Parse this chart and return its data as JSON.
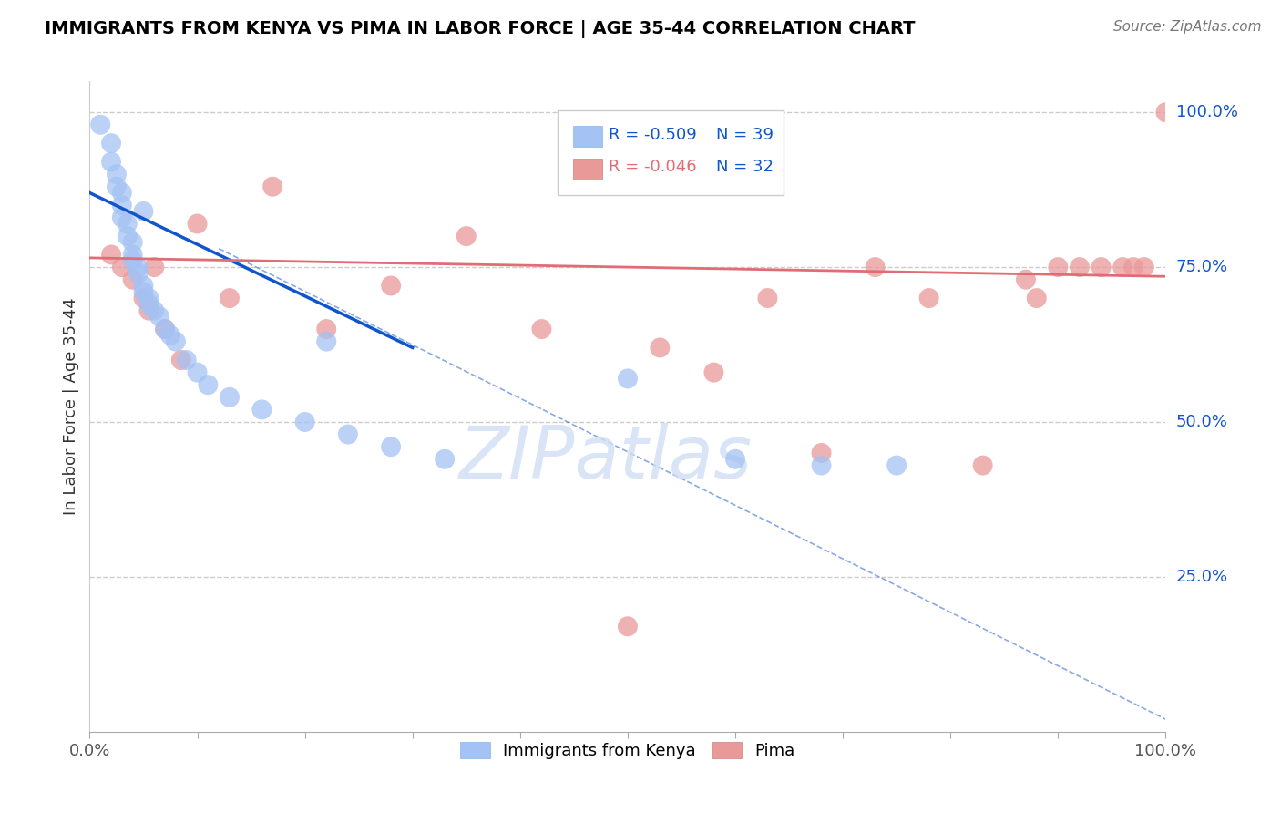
{
  "title": "IMMIGRANTS FROM KENYA VS PIMA IN LABOR FORCE | AGE 35-44 CORRELATION CHART",
  "source": "Source: ZipAtlas.com",
  "ylabel": "In Labor Force | Age 35-44",
  "watermark": "ZIPatlas",
  "legend_r_blue": "R = -0.509",
  "legend_n_blue": "N = 39",
  "legend_r_pink": "R = -0.046",
  "legend_n_pink": "N = 32",
  "legend_label_blue": "Immigrants from Kenya",
  "legend_label_pink": "Pima",
  "right_ytick_labels": [
    "100.0%",
    "75.0%",
    "50.0%",
    "25.0%"
  ],
  "right_ytick_values": [
    1.0,
    0.75,
    0.5,
    0.25
  ],
  "blue_color": "#a4c2f4",
  "pink_color": "#ea9999",
  "blue_line_color": "#1155cc",
  "pink_line_color": "#e06c75",
  "blue_scatter_x": [
    0.01,
    0.02,
    0.02,
    0.025,
    0.025,
    0.03,
    0.03,
    0.03,
    0.035,
    0.035,
    0.04,
    0.04,
    0.04,
    0.045,
    0.045,
    0.05,
    0.05,
    0.05,
    0.055,
    0.055,
    0.06,
    0.065,
    0.07,
    0.075,
    0.08,
    0.09,
    0.1,
    0.11,
    0.13,
    0.16,
    0.2,
    0.22,
    0.24,
    0.28,
    0.33,
    0.5,
    0.6,
    0.68,
    0.75
  ],
  "blue_scatter_y": [
    0.98,
    0.95,
    0.92,
    0.9,
    0.88,
    0.87,
    0.85,
    0.83,
    0.82,
    0.8,
    0.79,
    0.77,
    0.76,
    0.75,
    0.74,
    0.84,
    0.72,
    0.71,
    0.7,
    0.69,
    0.68,
    0.67,
    0.65,
    0.64,
    0.63,
    0.6,
    0.58,
    0.56,
    0.54,
    0.52,
    0.5,
    0.63,
    0.48,
    0.46,
    0.44,
    0.57,
    0.44,
    0.43,
    0.43
  ],
  "pink_scatter_x": [
    0.02,
    0.03,
    0.04,
    0.05,
    0.055,
    0.06,
    0.07,
    0.085,
    0.1,
    0.13,
    0.17,
    0.22,
    0.28,
    0.35,
    0.42,
    0.5,
    0.53,
    0.58,
    0.63,
    0.68,
    0.73,
    0.78,
    0.83,
    0.87,
    0.88,
    0.9,
    0.92,
    0.94,
    0.96,
    0.97,
    0.98,
    1.0
  ],
  "pink_scatter_y": [
    0.77,
    0.75,
    0.73,
    0.7,
    0.68,
    0.75,
    0.65,
    0.6,
    0.82,
    0.7,
    0.88,
    0.65,
    0.72,
    0.8,
    0.65,
    0.17,
    0.62,
    0.58,
    0.7,
    0.45,
    0.75,
    0.7,
    0.43,
    0.73,
    0.7,
    0.75,
    0.75,
    0.75,
    0.75,
    0.75,
    0.75,
    1.0
  ],
  "blue_regline_x": [
    0.0,
    0.3
  ],
  "blue_regline_y": [
    0.87,
    0.62
  ],
  "pink_regline_x": [
    0.0,
    1.0
  ],
  "pink_regline_y": [
    0.765,
    0.735
  ],
  "dashed_line_x": [
    0.12,
    1.0
  ],
  "dashed_line_y": [
    0.78,
    0.02
  ],
  "xlim": [
    0.0,
    1.0
  ],
  "ylim": [
    0.0,
    1.05
  ],
  "xtick_positions": [
    0.0,
    0.1,
    0.2,
    0.3,
    0.4,
    0.5,
    0.6,
    0.7,
    0.8,
    0.9,
    1.0
  ]
}
